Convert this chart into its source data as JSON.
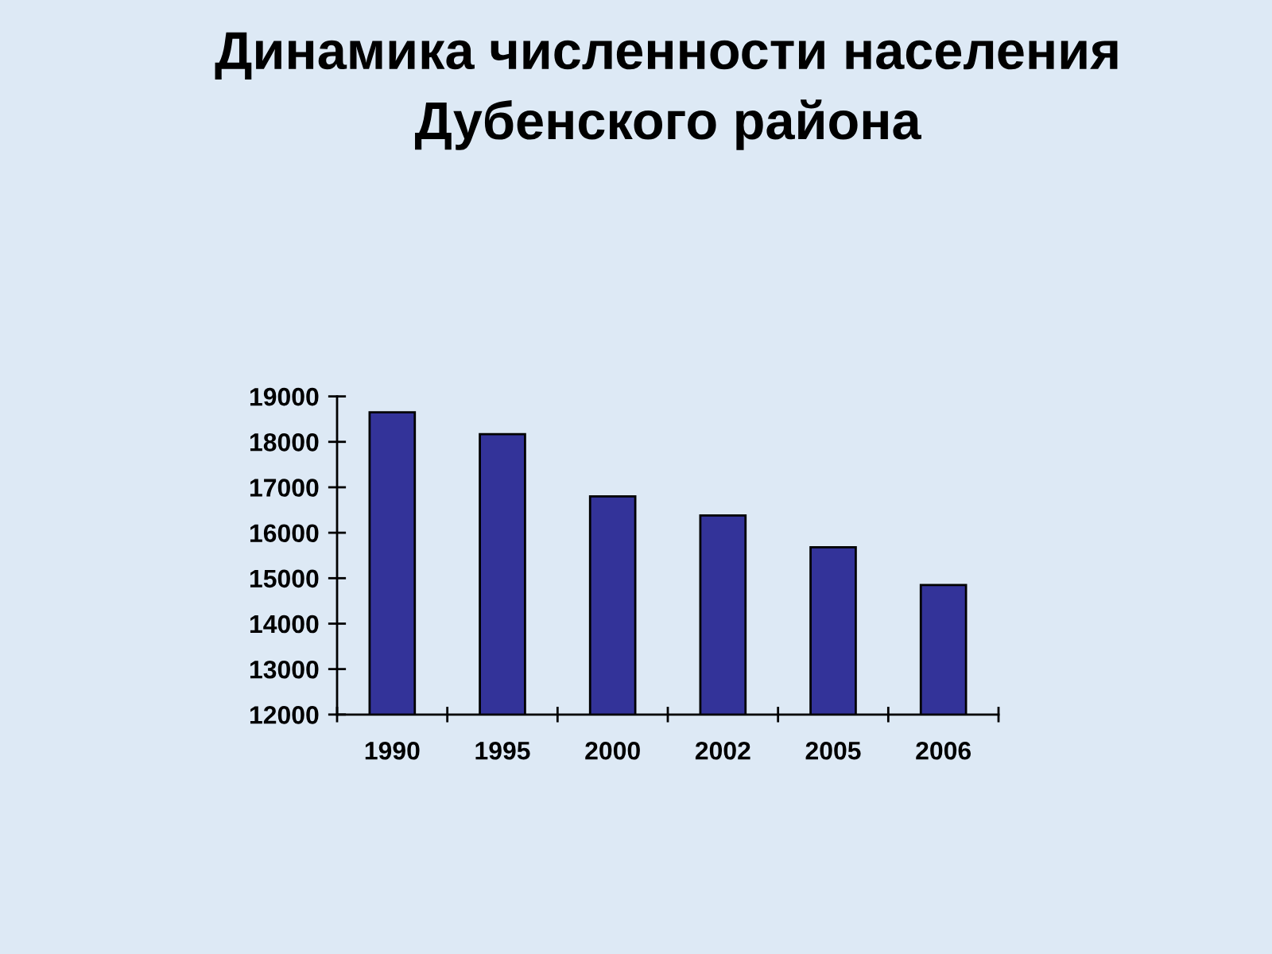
{
  "chart_data": {
    "type": "bar",
    "title": "Динамика численности населения\nДубенского района",
    "categories": [
      "1990",
      "1995",
      "2000",
      "2002",
      "2005",
      "2006"
    ],
    "values": [
      18650,
      18170,
      16800,
      16380,
      15680,
      14850
    ],
    "color": "#333399",
    "ylim": [
      12000,
      19000
    ],
    "yticks": [
      12000,
      13000,
      14000,
      15000,
      16000,
      17000,
      18000,
      19000
    ],
    "grid": false
  }
}
